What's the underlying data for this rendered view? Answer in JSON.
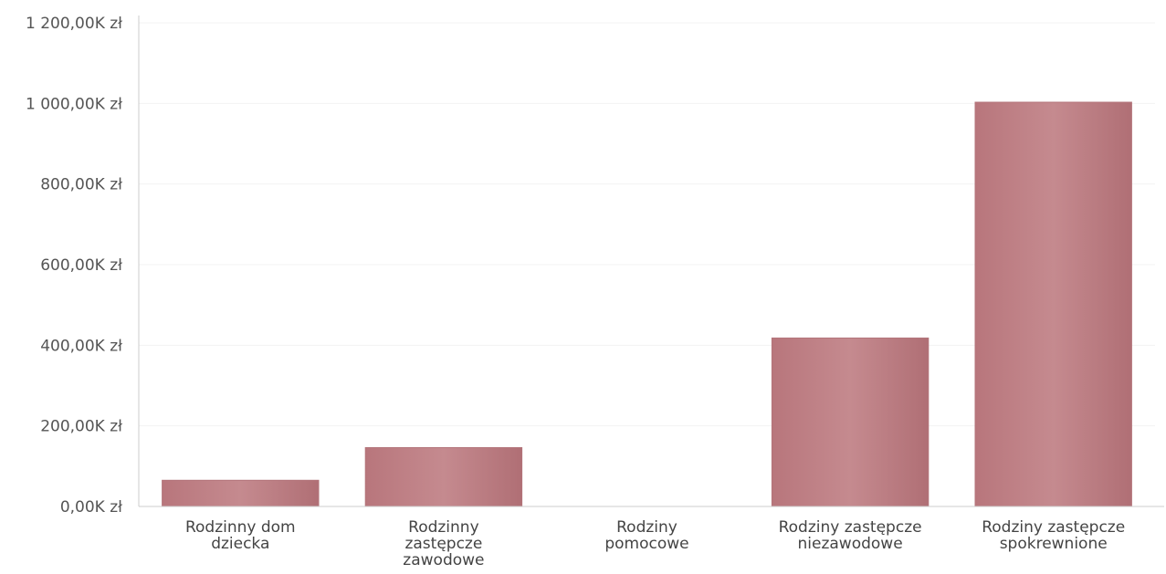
{
  "chart_data": {
    "type": "bar",
    "categories": [
      "Rodzinny dom dziecka",
      "Rodzinny zastępcze zawodowe",
      "Rodziny pomocowe",
      "Rodziny zastępcze niezawodowe",
      "Rodziny zastępcze spokrewnione"
    ],
    "values": [
      65000,
      146000,
      0,
      418000,
      1003000
    ],
    "ylim": [
      0,
      1200000
    ],
    "yticks": [
      {
        "value": 0,
        "label": "0,00K zł"
      },
      {
        "value": 200000,
        "label": "200,00K zł"
      },
      {
        "value": 400000,
        "label": "400,00K zł"
      },
      {
        "value": 600000,
        "label": "600,00K zł"
      },
      {
        "value": 800000,
        "label": "800,00K zł"
      },
      {
        "value": 1000000,
        "label": "1 000,00K zł"
      },
      {
        "value": 1200000,
        "label": "1 200,00K zł"
      }
    ],
    "title": "",
    "xlabel": "",
    "ylabel": "",
    "grid": true,
    "legend": "none",
    "colors": {
      "bar": "#c07f84",
      "bar_edge": "#b3747a",
      "axis": "#cccccc",
      "grid": "#f3f3f3"
    }
  }
}
